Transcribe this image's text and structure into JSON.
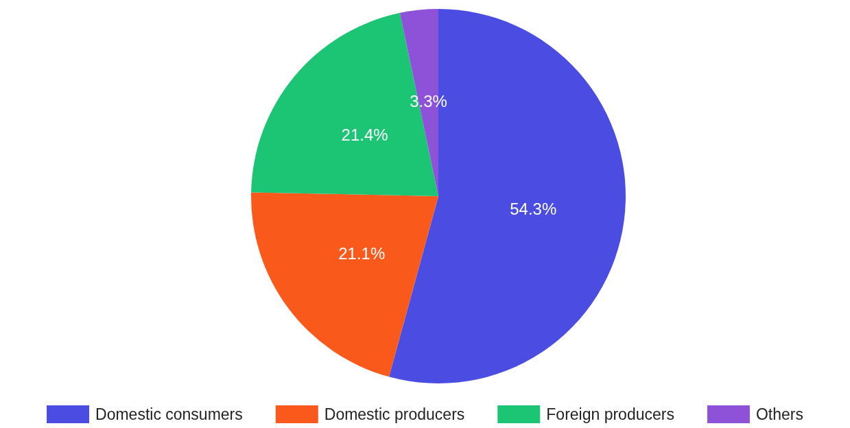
{
  "chart_data": {
    "type": "pie",
    "categories": [
      "Domestic consumers",
      "Domestic producers",
      "Foreign producers",
      "Others"
    ],
    "values": [
      54.3,
      21.1,
      21.4,
      3.3
    ],
    "colors": [
      "#4a4ce2",
      "#f95a1c",
      "#1bc574",
      "#8e52d9"
    ],
    "value_labels": [
      "54.3%",
      "21.1%",
      "21.4%",
      "3.3%"
    ],
    "legend": "bottom"
  }
}
